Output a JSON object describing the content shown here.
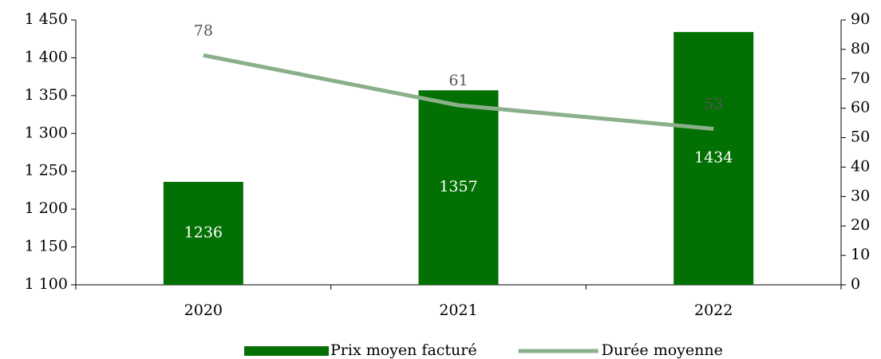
{
  "chart_data": {
    "type": "bar",
    "categories": [
      "2020",
      "2021",
      "2022"
    ],
    "series": [
      {
        "name": "Prix moyen facturé",
        "color": "#037003",
        "values": [
          1236,
          1357,
          1434
        ]
      },
      {
        "name": "Durée moyenne",
        "type": "line",
        "axis": "y2",
        "color": "#8aaf8a",
        "values": [
          78,
          61,
          53
        ]
      }
    ],
    "ylim": [
      1100,
      1450
    ],
    "yticks": [
      {
        "value": 1100,
        "label": "1 100"
      },
      {
        "value": 1150,
        "label": "1 150"
      },
      {
        "value": 1200,
        "label": "1 200"
      },
      {
        "value": 1250,
        "label": "1 250"
      },
      {
        "value": 1300,
        "label": "1 300"
      },
      {
        "value": 1350,
        "label": "1 350"
      },
      {
        "value": 1400,
        "label": "1 400"
      },
      {
        "value": 1450,
        "label": "1 450"
      }
    ],
    "y2lim": [
      0,
      90
    ],
    "y2ticks": [
      0,
      10,
      20,
      30,
      40,
      50,
      60,
      70,
      80,
      90
    ],
    "grid": false,
    "legend": "bottom"
  }
}
